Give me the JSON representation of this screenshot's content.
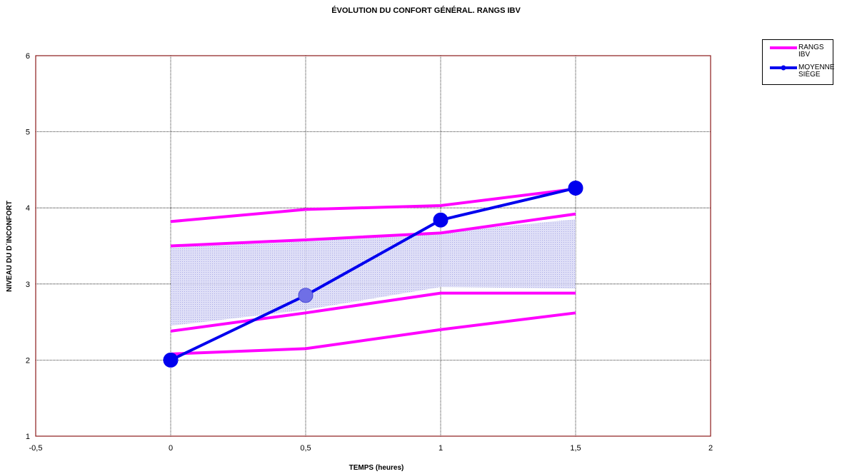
{
  "chart_data": {
    "type": "line",
    "title": "ÉVOLUTION DU CONFORT GÉNÉRAL. RANGS IBV",
    "xlabel": "TEMPS (heures)",
    "ylabel": "NIVEAU DU D´INCONFORT",
    "xlim": [
      -0.5,
      2
    ],
    "ylim": [
      1,
      6
    ],
    "x_ticks": [
      "-0,5",
      "0",
      "0,5",
      "1",
      "1,5",
      "2"
    ],
    "x_tick_values": [
      -0.5,
      0,
      0.5,
      1,
      1.5,
      2
    ],
    "y_ticks": [
      "1",
      "2",
      "3",
      "4",
      "5",
      "6"
    ],
    "y_tick_values": [
      1,
      2,
      3,
      4,
      5,
      6
    ],
    "grid": true,
    "legend_position": "top-right",
    "series": [
      {
        "name": "RANGS IBV",
        "color": "#ff00ff",
        "role": "range",
        "lines": [
          {
            "x": [
              0,
              0.5,
              1,
              1.5
            ],
            "y": [
              3.82,
              3.98,
              4.03,
              4.25
            ]
          },
          {
            "x": [
              0,
              0.5,
              1,
              1.5
            ],
            "y": [
              3.5,
              3.58,
              3.67,
              3.92
            ]
          },
          {
            "x": [
              0,
              0.5,
              1,
              1.5
            ],
            "y": [
              2.38,
              2.62,
              2.88,
              2.88
            ]
          },
          {
            "x": [
              0,
              0.5,
              1,
              1.5
            ],
            "y": [
              2.08,
              2.15,
              2.4,
              2.62
            ]
          }
        ]
      },
      {
        "name": "MOYENNE SIÈGE",
        "color": "#0000ee",
        "role": "mean",
        "x": [
          0,
          0.5,
          1,
          1.5
        ],
        "y": [
          2.0,
          2.85,
          3.84,
          4.26
        ]
      }
    ],
    "band": {
      "color": "#c8c8f4",
      "x": [
        0,
        0.5,
        1,
        1.5
      ],
      "upper": [
        3.48,
        3.56,
        3.68,
        3.85
      ],
      "lower": [
        2.45,
        2.66,
        2.96,
        2.94
      ]
    }
  },
  "legend": {
    "items": [
      {
        "label": "RANGS IBV",
        "color": "#ff00ff",
        "marker": false
      },
      {
        "label": "MOYENNE\nSIÈGE",
        "color": "#0000ee",
        "marker": true
      }
    ]
  }
}
